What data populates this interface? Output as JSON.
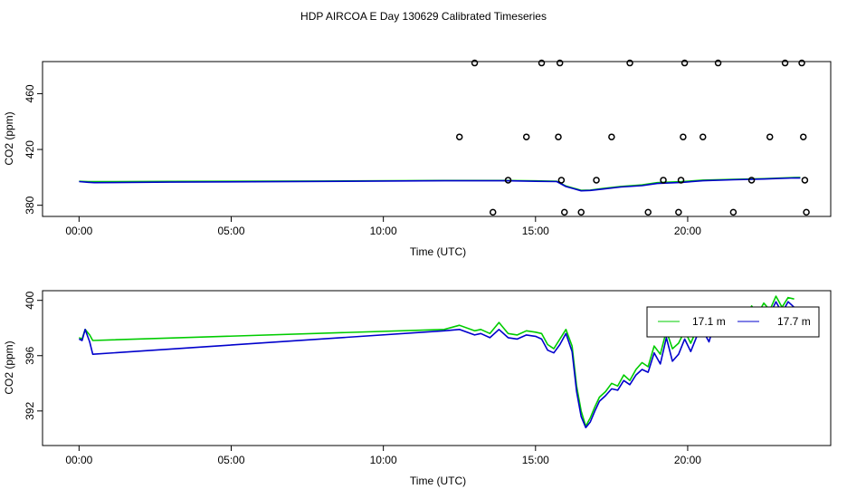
{
  "page": {
    "title": "HDP AIRCOA E  Day 130629  Calibrated Timeseries"
  },
  "colors": {
    "series_green": "#00cc00",
    "series_blue": "#0000cc",
    "points": "#000000",
    "axis": "#000000",
    "background": "#ffffff"
  },
  "chart_data": [
    {
      "type": "scatter",
      "title": "HDP AIRCOA E  Day 130629  Calibrated Timeseries",
      "xlabel": "Time (UTC)",
      "ylabel": "CO2 (ppm)",
      "xlim": [
        -1.2,
        24.7
      ],
      "ylim": [
        372,
        483
      ],
      "x_ticks": [
        0,
        5,
        10,
        15,
        20
      ],
      "x_tick_labels": [
        "00:00",
        "05:00",
        "10:00",
        "15:00",
        "20:00"
      ],
      "y_ticks": [
        380,
        420,
        460
      ],
      "y_tick_labels": [
        "380",
        "420",
        "460"
      ],
      "grid": false,
      "series": [
        {
          "color": "#00cc00",
          "x": [
            0.0,
            0.3,
            0.5,
            3.0,
            8.0,
            12.0,
            14.0,
            15.0,
            15.7,
            16.0,
            16.5,
            16.8,
            17.2,
            17.8,
            18.5,
            19.0,
            19.8,
            20.5,
            21.5,
            22.5,
            23.5,
            23.7
          ],
          "y": [
            397.2,
            397.0,
            396.9,
            397.1,
            397.4,
            397.8,
            397.8,
            397.5,
            397.2,
            393.8,
            390.7,
            390.9,
            392.0,
            393.5,
            394.6,
            396.2,
            396.9,
            398.0,
            398.6,
            399.1,
            399.9,
            400.0
          ]
        },
        {
          "color": "#0000cc",
          "x": [
            0.0,
            0.3,
            0.5,
            3.0,
            8.0,
            12.0,
            14.0,
            15.0,
            15.7,
            16.0,
            16.5,
            16.8,
            17.2,
            17.8,
            18.5,
            19.0,
            19.8,
            20.5,
            21.5,
            22.5,
            23.5,
            23.7
          ],
          "y": [
            397.0,
            396.5,
            396.2,
            396.6,
            397.1,
            397.6,
            397.6,
            397.2,
            397.0,
            393.4,
            390.4,
            390.6,
            391.6,
            393.1,
            394.1,
            395.6,
            396.4,
            397.6,
            398.3,
            398.8,
            399.6,
            399.5
          ]
        },
        {
          "color": "#000000",
          "x": [
            12.5,
            13.0,
            13.6,
            14.1,
            14.7,
            15.2,
            15.75,
            15.8,
            15.85,
            15.95,
            16.5,
            17.0,
            17.5,
            18.1,
            18.7,
            19.2,
            19.7,
            19.78,
            19.85,
            19.9,
            20.5,
            21.0,
            21.5,
            22.1,
            22.7,
            23.2,
            23.75,
            23.8,
            23.85,
            23.9
          ],
          "y": [
            429,
            482,
            375,
            398,
            429,
            482,
            429,
            482,
            398,
            375,
            375,
            398,
            429,
            482,
            375,
            398,
            375,
            398,
            429,
            482,
            429,
            482,
            375,
            398,
            429,
            482,
            482,
            429,
            398,
            375
          ]
        }
      ]
    },
    {
      "type": "line",
      "xlabel": "Time (UTC)",
      "ylabel": "CO2 (ppm)",
      "xlim": [
        -1.2,
        24.7
      ],
      "ylim": [
        389.5,
        400.7
      ],
      "x_ticks": [
        0,
        5,
        10,
        15,
        20
      ],
      "x_tick_labels": [
        "00:00",
        "05:00",
        "10:00",
        "15:00",
        "20:00"
      ],
      "y_ticks": [
        392,
        396,
        400
      ],
      "y_tick_labels": [
        "392",
        "396",
        "400"
      ],
      "grid": false,
      "legend": {
        "position": "top-right",
        "entries": [
          "17.1 m",
          "17.7 m"
        ]
      },
      "series": [
        {
          "name": "17.1 m",
          "color": "#00cc00",
          "x": [
            0.0,
            0.1,
            0.2,
            0.35,
            0.45,
            12.0,
            12.5,
            13.0,
            13.2,
            13.5,
            13.8,
            14.1,
            14.4,
            14.7,
            15.0,
            15.2,
            15.4,
            15.6,
            15.8,
            16.0,
            16.2,
            16.35,
            16.5,
            16.65,
            16.8,
            16.95,
            17.1,
            17.3,
            17.5,
            17.7,
            17.9,
            18.1,
            18.3,
            18.5,
            18.7,
            18.9,
            19.1,
            19.3,
            19.5,
            19.7,
            19.9,
            20.1,
            20.3,
            20.5,
            20.7,
            20.9,
            21.1,
            21.3,
            21.5,
            21.7,
            21.9,
            22.1,
            22.3,
            22.5,
            22.7,
            22.9,
            23.1,
            23.3,
            23.5
          ],
          "y": [
            397.3,
            397.2,
            397.9,
            397.5,
            397.1,
            397.9,
            398.2,
            397.8,
            397.9,
            397.6,
            398.4,
            397.6,
            397.5,
            397.8,
            397.7,
            397.6,
            396.8,
            396.5,
            397.2,
            397.9,
            396.7,
            393.8,
            392.0,
            390.9,
            391.5,
            392.3,
            393.0,
            393.4,
            394.0,
            393.8,
            394.6,
            394.2,
            395.0,
            395.5,
            395.2,
            396.7,
            396.1,
            397.8,
            396.5,
            396.9,
            397.8,
            396.9,
            397.9,
            398.1,
            397.4,
            398.9,
            398.3,
            399.0,
            398.4,
            399.3,
            398.7,
            399.6,
            399.0,
            399.8,
            399.3,
            400.3,
            399.5,
            400.2,
            400.1
          ]
        },
        {
          "name": "17.7 m",
          "color": "#0000cc",
          "x": [
            0.0,
            0.1,
            0.2,
            0.35,
            0.45,
            12.0,
            12.5,
            13.0,
            13.2,
            13.5,
            13.8,
            14.1,
            14.4,
            14.7,
            15.0,
            15.2,
            15.4,
            15.6,
            15.8,
            16.0,
            16.2,
            16.35,
            16.5,
            16.65,
            16.8,
            16.95,
            17.1,
            17.3,
            17.5,
            17.7,
            17.9,
            18.1,
            18.3,
            18.5,
            18.7,
            18.9,
            19.1,
            19.3,
            19.5,
            19.7,
            19.9,
            20.1,
            20.3,
            20.5,
            20.7,
            20.9,
            21.1,
            21.3,
            21.5,
            21.7,
            21.9,
            22.1,
            22.3,
            22.5,
            22.7,
            22.9,
            23.1,
            23.3,
            23.5
          ],
          "y": [
            397.2,
            397.1,
            397.9,
            397.0,
            396.1,
            397.8,
            397.9,
            397.5,
            397.6,
            397.3,
            397.9,
            397.3,
            397.2,
            397.5,
            397.4,
            397.2,
            396.4,
            396.2,
            396.8,
            397.6,
            396.3,
            393.4,
            391.6,
            390.8,
            391.2,
            392.0,
            392.7,
            393.1,
            393.6,
            393.5,
            394.2,
            393.9,
            394.6,
            395.0,
            394.8,
            396.2,
            395.4,
            397.3,
            395.6,
            396.1,
            397.2,
            396.3,
            397.4,
            397.8,
            397.0,
            398.5,
            397.9,
            398.7,
            398.1,
            399.1,
            398.5,
            399.3,
            398.8,
            399.5,
            399.0,
            399.9,
            399.1,
            399.9,
            399.5
          ]
        }
      ]
    }
  ]
}
